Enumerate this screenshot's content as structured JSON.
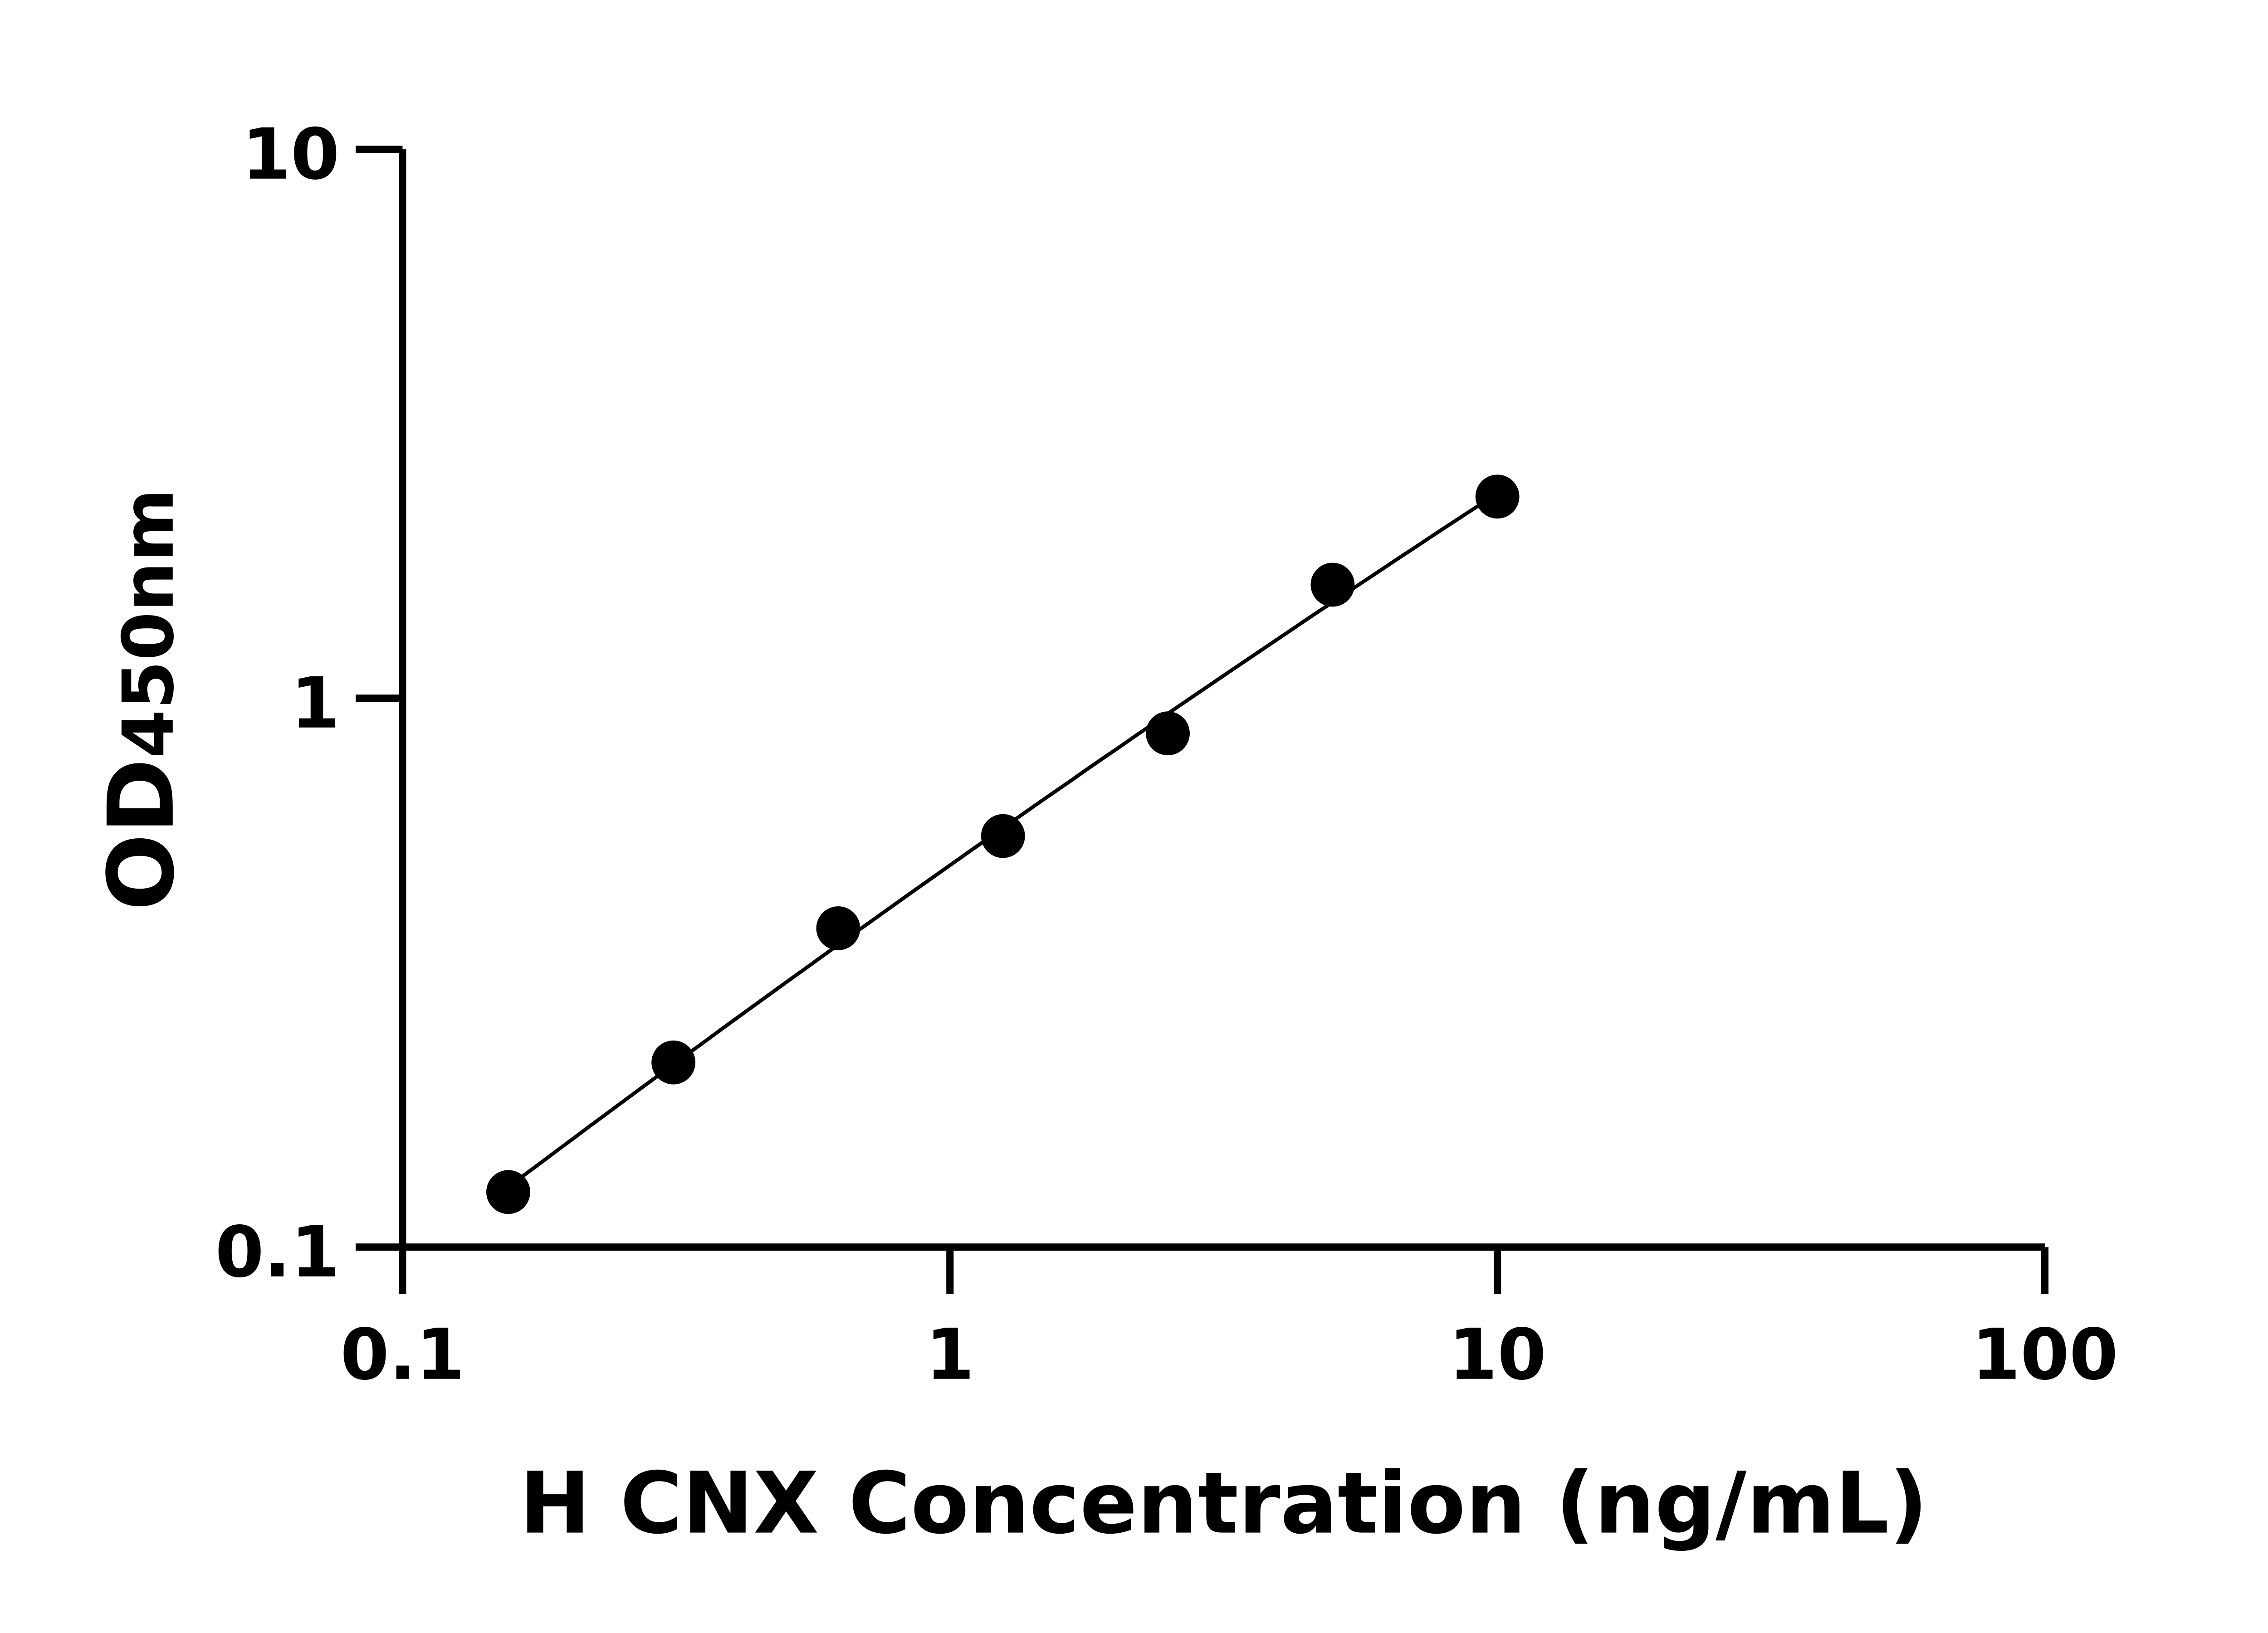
{
  "chart_data": {
    "type": "scatter",
    "title": "",
    "xlabel": "H CNX Concentration (ng/mL)",
    "ylabel": {
      "main": "OD",
      "sub": "450nm"
    },
    "xscale": "log",
    "yscale": "log",
    "xlim": [
      0.1,
      100
    ],
    "ylim": [
      0.1,
      10
    ],
    "xticks": [
      "0.1",
      "1",
      "10",
      "100"
    ],
    "yticks": [
      "0.1",
      "1",
      "10"
    ],
    "grid": false,
    "fit_curve": true,
    "marker_color": "#000000",
    "x": [
      0.156,
      0.3125,
      0.625,
      1.25,
      2.5,
      5,
      10
    ],
    "y": [
      0.126,
      0.217,
      0.381,
      0.561,
      0.863,
      1.61,
      2.33
    ]
  }
}
